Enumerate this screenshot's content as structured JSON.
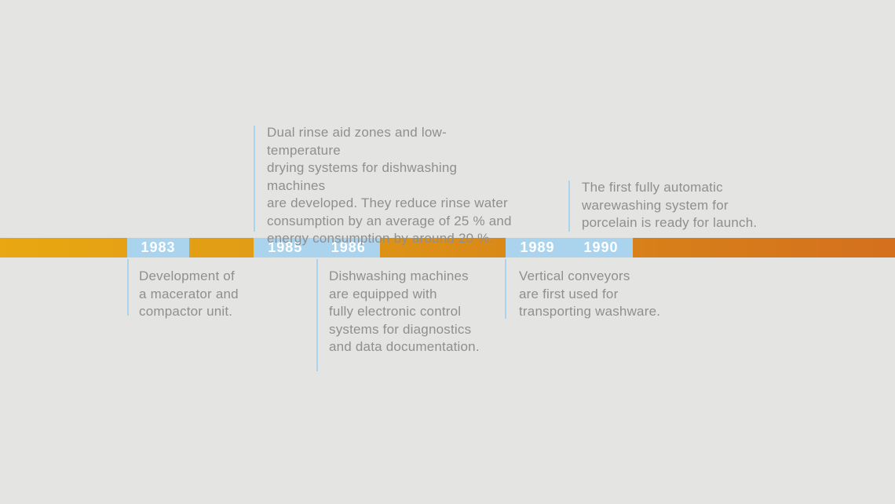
{
  "canvas": {
    "background_color": "#E4E4E2"
  },
  "timeline": {
    "type": "horizontal-timeline",
    "band_colors": {
      "gradient_start": "#E9A712",
      "gradient_end": "#D4701E"
    },
    "segment_color": "#AAD3EE",
    "year_text_color": "#FFFFFF",
    "description_text_color": "#8F8F8F"
  },
  "events": {
    "y1983": {
      "year": "1983",
      "description": "Development of\na macerator and\ncompactor unit."
    },
    "y1985": {
      "year": "1985",
      "description": "Dual rinse aid zones and low-temperature\ndrying systems for dishwashing machines\nare developed. They reduce rinse water\nconsumption by an average of 25 % and\nenergy consumption by around 20 %."
    },
    "y1986": {
      "year": "1986",
      "description": "Dishwashing machines\nare equipped with\nfully electronic control\nsystems for diagnostics\nand data documentation."
    },
    "y1989": {
      "year": "1989",
      "description": "Vertical conveyors\nare first used for\ntransporting washware."
    },
    "y1990": {
      "year": "1990",
      "description": "The first fully automatic\nwarewashing system for\nporcelain is ready for launch."
    }
  }
}
